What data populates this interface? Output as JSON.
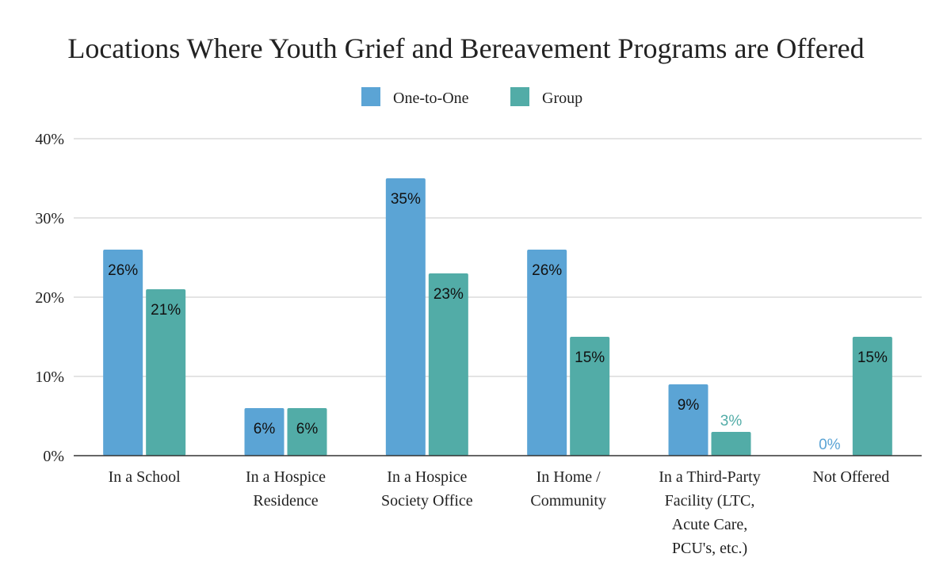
{
  "chart_data": {
    "type": "bar",
    "title": "Locations Where Youth Grief and Bereavement Programs are Offered",
    "categories": [
      [
        "In a School"
      ],
      [
        "In a Hospice",
        "Residence"
      ],
      [
        "In a Hospice",
        "Society Office"
      ],
      [
        "In Home /",
        "Community"
      ],
      [
        "In a Third-Party",
        "Facility (LTC,",
        "Acute Care,",
        "PCU's, etc.)"
      ],
      [
        "Not Offered"
      ]
    ],
    "series": [
      {
        "name": "One-to-One",
        "color": "#5ba4d5",
        "values": [
          26,
          6,
          35,
          26,
          9,
          0
        ],
        "labels": [
          "26%",
          "6%",
          "35%",
          "26%",
          "9%",
          "0%"
        ]
      },
      {
        "name": "Group",
        "color": "#52aca7",
        "values": [
          21,
          6,
          23,
          15,
          3,
          15
        ],
        "labels": [
          "21%",
          "6%",
          "23%",
          "15%",
          "3%",
          "15%"
        ]
      }
    ],
    "y_ticks": [
      "0%",
      "10%",
      "20%",
      "30%",
      "40%"
    ],
    "ylim": [
      0,
      40
    ],
    "grid": true,
    "legend_position": "top-center"
  }
}
